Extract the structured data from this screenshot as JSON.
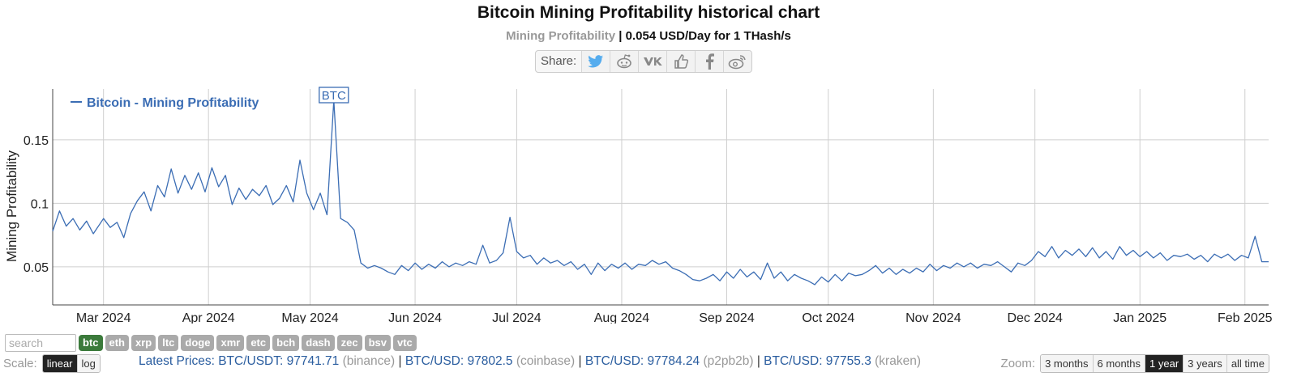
{
  "header": {
    "title": "Bitcoin Mining Profitability historical chart",
    "subtitle_muted": "Mining Profitability",
    "subtitle_value": "| 0.054 USD/Day for 1 THash/s",
    "share_label": "Share:",
    "share_icons": [
      "twitter-icon",
      "reddit-icon",
      "vk-icon",
      "like-icon",
      "facebook-icon",
      "weibo-icon"
    ]
  },
  "chart_data": {
    "type": "line",
    "ylabel": "Mining Profitability",
    "ylim": [
      0.02,
      0.19
    ],
    "yticks": [
      0.05,
      0.1,
      0.15
    ],
    "ytick_labels": [
      "0.05",
      "0.1",
      "0.15"
    ],
    "x_start": "2024-02-15",
    "x_end": "2025-02-08",
    "xticks": [
      {
        "date": "2024-03-01",
        "label": "Mar 2024"
      },
      {
        "date": "2024-04-01",
        "label": "Apr 2024"
      },
      {
        "date": "2024-05-01",
        "label": "May 2024"
      },
      {
        "date": "2024-06-01",
        "label": "Jun 2024"
      },
      {
        "date": "2024-07-01",
        "label": "Jul 2024"
      },
      {
        "date": "2024-08-01",
        "label": "Aug 2024"
      },
      {
        "date": "2024-09-01",
        "label": "Sep 2024"
      },
      {
        "date": "2024-10-01",
        "label": "Oct 2024"
      },
      {
        "date": "2024-11-01",
        "label": "Nov 2024"
      },
      {
        "date": "2024-12-01",
        "label": "Dec 2024"
      },
      {
        "date": "2025-01-01",
        "label": "Jan 2025"
      },
      {
        "date": "2025-02-01",
        "label": "Feb 2025"
      }
    ],
    "grid": true,
    "legend_position": "top-left",
    "series": [
      {
        "name": "Bitcoin - Mining Profitability",
        "color": "#3b6db4",
        "points": [
          [
            "2024-02-15",
            0.078
          ],
          [
            "2024-02-17",
            0.094
          ],
          [
            "2024-02-19",
            0.082
          ],
          [
            "2024-02-21",
            0.088
          ],
          [
            "2024-02-23",
            0.079
          ],
          [
            "2024-02-25",
            0.086
          ],
          [
            "2024-02-27",
            0.076
          ],
          [
            "2024-03-01",
            0.088
          ],
          [
            "2024-03-03",
            0.081
          ],
          [
            "2024-03-05",
            0.085
          ],
          [
            "2024-03-07",
            0.073
          ],
          [
            "2024-03-09",
            0.092
          ],
          [
            "2024-03-11",
            0.102
          ],
          [
            "2024-03-13",
            0.109
          ],
          [
            "2024-03-15",
            0.094
          ],
          [
            "2024-03-17",
            0.114
          ],
          [
            "2024-03-19",
            0.105
          ],
          [
            "2024-03-21",
            0.127
          ],
          [
            "2024-03-23",
            0.108
          ],
          [
            "2024-03-25",
            0.122
          ],
          [
            "2024-03-27",
            0.111
          ],
          [
            "2024-03-29",
            0.124
          ],
          [
            "2024-03-31",
            0.109
          ],
          [
            "2024-04-02",
            0.128
          ],
          [
            "2024-04-04",
            0.113
          ],
          [
            "2024-04-06",
            0.122
          ],
          [
            "2024-04-08",
            0.099
          ],
          [
            "2024-04-10",
            0.112
          ],
          [
            "2024-04-12",
            0.103
          ],
          [
            "2024-04-14",
            0.111
          ],
          [
            "2024-04-16",
            0.106
          ],
          [
            "2024-04-18",
            0.114
          ],
          [
            "2024-04-20",
            0.099
          ],
          [
            "2024-04-22",
            0.104
          ],
          [
            "2024-04-24",
            0.114
          ],
          [
            "2024-04-26",
            0.101
          ],
          [
            "2024-04-28",
            0.134
          ],
          [
            "2024-04-30",
            0.108
          ],
          [
            "2024-05-02",
            0.095
          ],
          [
            "2024-05-04",
            0.108
          ],
          [
            "2024-05-06",
            0.091
          ],
          [
            "2024-05-08",
            0.181
          ],
          [
            "2024-05-10",
            0.088
          ],
          [
            "2024-05-12",
            0.085
          ],
          [
            "2024-05-14",
            0.079
          ],
          [
            "2024-05-16",
            0.053
          ],
          [
            "2024-05-18",
            0.049
          ],
          [
            "2024-05-20",
            0.051
          ],
          [
            "2024-05-22",
            0.049
          ],
          [
            "2024-05-24",
            0.046
          ],
          [
            "2024-05-26",
            0.044
          ],
          [
            "2024-05-28",
            0.051
          ],
          [
            "2024-05-30",
            0.047
          ],
          [
            "2024-06-01",
            0.053
          ],
          [
            "2024-06-03",
            0.048
          ],
          [
            "2024-06-05",
            0.052
          ],
          [
            "2024-06-07",
            0.049
          ],
          [
            "2024-06-09",
            0.054
          ],
          [
            "2024-06-11",
            0.05
          ],
          [
            "2024-06-13",
            0.053
          ],
          [
            "2024-06-15",
            0.051
          ],
          [
            "2024-06-17",
            0.054
          ],
          [
            "2024-06-19",
            0.052
          ],
          [
            "2024-06-21",
            0.067
          ],
          [
            "2024-06-23",
            0.053
          ],
          [
            "2024-06-25",
            0.055
          ],
          [
            "2024-06-27",
            0.061
          ],
          [
            "2024-06-29",
            0.089
          ],
          [
            "2024-07-01",
            0.062
          ],
          [
            "2024-07-03",
            0.057
          ],
          [
            "2024-07-05",
            0.059
          ],
          [
            "2024-07-07",
            0.052
          ],
          [
            "2024-07-09",
            0.057
          ],
          [
            "2024-07-11",
            0.053
          ],
          [
            "2024-07-13",
            0.055
          ],
          [
            "2024-07-15",
            0.051
          ],
          [
            "2024-07-17",
            0.054
          ],
          [
            "2024-07-19",
            0.048
          ],
          [
            "2024-07-21",
            0.052
          ],
          [
            "2024-07-23",
            0.044
          ],
          [
            "2024-07-25",
            0.053
          ],
          [
            "2024-07-27",
            0.047
          ],
          [
            "2024-07-29",
            0.052
          ],
          [
            "2024-07-31",
            0.049
          ],
          [
            "2024-08-02",
            0.053
          ],
          [
            "2024-08-04",
            0.048
          ],
          [
            "2024-08-06",
            0.052
          ],
          [
            "2024-08-08",
            0.051
          ],
          [
            "2024-08-10",
            0.055
          ],
          [
            "2024-08-12",
            0.052
          ],
          [
            "2024-08-14",
            0.054
          ],
          [
            "2024-08-16",
            0.049
          ],
          [
            "2024-08-18",
            0.047
          ],
          [
            "2024-08-20",
            0.044
          ],
          [
            "2024-08-22",
            0.04
          ],
          [
            "2024-08-24",
            0.039
          ],
          [
            "2024-08-26",
            0.041
          ],
          [
            "2024-08-28",
            0.044
          ],
          [
            "2024-08-30",
            0.039
          ],
          [
            "2024-09-01",
            0.046
          ],
          [
            "2024-09-03",
            0.041
          ],
          [
            "2024-09-05",
            0.048
          ],
          [
            "2024-09-07",
            0.042
          ],
          [
            "2024-09-09",
            0.046
          ],
          [
            "2024-09-11",
            0.04
          ],
          [
            "2024-09-13",
            0.053
          ],
          [
            "2024-09-15",
            0.041
          ],
          [
            "2024-09-17",
            0.046
          ],
          [
            "2024-09-19",
            0.039
          ],
          [
            "2024-09-21",
            0.044
          ],
          [
            "2024-09-23",
            0.041
          ],
          [
            "2024-09-25",
            0.039
          ],
          [
            "2024-09-27",
            0.036
          ],
          [
            "2024-09-29",
            0.042
          ],
          [
            "2024-10-01",
            0.038
          ],
          [
            "2024-10-03",
            0.044
          ],
          [
            "2024-10-05",
            0.039
          ],
          [
            "2024-10-07",
            0.045
          ],
          [
            "2024-10-09",
            0.043
          ],
          [
            "2024-10-11",
            0.044
          ],
          [
            "2024-10-13",
            0.047
          ],
          [
            "2024-10-15",
            0.051
          ],
          [
            "2024-10-17",
            0.045
          ],
          [
            "2024-10-19",
            0.049
          ],
          [
            "2024-10-21",
            0.044
          ],
          [
            "2024-10-23",
            0.048
          ],
          [
            "2024-10-25",
            0.045
          ],
          [
            "2024-10-27",
            0.049
          ],
          [
            "2024-10-29",
            0.046
          ],
          [
            "2024-10-31",
            0.052
          ],
          [
            "2024-11-02",
            0.047
          ],
          [
            "2024-11-04",
            0.051
          ],
          [
            "2024-11-06",
            0.049
          ],
          [
            "2024-11-08",
            0.053
          ],
          [
            "2024-11-10",
            0.05
          ],
          [
            "2024-11-12",
            0.053
          ],
          [
            "2024-11-14",
            0.049
          ],
          [
            "2024-11-16",
            0.052
          ],
          [
            "2024-11-18",
            0.051
          ],
          [
            "2024-11-20",
            0.054
          ],
          [
            "2024-11-22",
            0.05
          ],
          [
            "2024-11-24",
            0.046
          ],
          [
            "2024-11-26",
            0.053
          ],
          [
            "2024-11-28",
            0.051
          ],
          [
            "2024-11-30",
            0.055
          ],
          [
            "2024-12-02",
            0.062
          ],
          [
            "2024-12-04",
            0.058
          ],
          [
            "2024-12-06",
            0.066
          ],
          [
            "2024-12-08",
            0.057
          ],
          [
            "2024-12-10",
            0.063
          ],
          [
            "2024-12-12",
            0.059
          ],
          [
            "2024-12-14",
            0.064
          ],
          [
            "2024-12-16",
            0.058
          ],
          [
            "2024-12-18",
            0.065
          ],
          [
            "2024-12-20",
            0.057
          ],
          [
            "2024-12-22",
            0.062
          ],
          [
            "2024-12-24",
            0.056
          ],
          [
            "2024-12-26",
            0.066
          ],
          [
            "2024-12-28",
            0.059
          ],
          [
            "2024-12-30",
            0.063
          ],
          [
            "2025-01-01",
            0.058
          ],
          [
            "2025-01-03",
            0.062
          ],
          [
            "2025-01-05",
            0.057
          ],
          [
            "2025-01-07",
            0.061
          ],
          [
            "2025-01-09",
            0.055
          ],
          [
            "2025-01-11",
            0.059
          ],
          [
            "2025-01-13",
            0.058
          ],
          [
            "2025-01-15",
            0.06
          ],
          [
            "2025-01-17",
            0.056
          ],
          [
            "2025-01-19",
            0.059
          ],
          [
            "2025-01-21",
            0.054
          ],
          [
            "2025-01-23",
            0.06
          ],
          [
            "2025-01-25",
            0.057
          ],
          [
            "2025-01-27",
            0.06
          ],
          [
            "2025-01-29",
            0.055
          ],
          [
            "2025-01-31",
            0.059
          ],
          [
            "2025-02-02",
            0.057
          ],
          [
            "2025-02-04",
            0.074
          ],
          [
            "2025-02-06",
            0.054
          ],
          [
            "2025-02-08",
            0.054
          ]
        ]
      }
    ],
    "annotation": {
      "label": "BTC",
      "date": "2024-05-08",
      "value": 0.181
    }
  },
  "coins": {
    "search_placeholder": "search",
    "items": [
      "btc",
      "eth",
      "xrp",
      "ltc",
      "doge",
      "xmr",
      "etc",
      "bch",
      "dash",
      "zec",
      "bsv",
      "vtc"
    ],
    "active": "btc"
  },
  "scale": {
    "label": "Scale:",
    "options": [
      "linear",
      "log"
    ],
    "selected": "linear"
  },
  "prices": {
    "label": "Latest Prices:",
    "items": [
      {
        "pair": "BTC/USDT: 97741.71",
        "exchange": "(binance)"
      },
      {
        "pair": "BTC/USD: 97802.5",
        "exchange": "(coinbase)"
      },
      {
        "pair": "BTC/USD: 97784.24",
        "exchange": "(p2pb2b)"
      },
      {
        "pair": "BTC/USD: 97755.3",
        "exchange": "(kraken)"
      }
    ]
  },
  "zoom": {
    "label": "Zoom:",
    "options": [
      "3 months",
      "6 months",
      "1 year",
      "3 years",
      "all time"
    ],
    "selected": "1 year"
  }
}
